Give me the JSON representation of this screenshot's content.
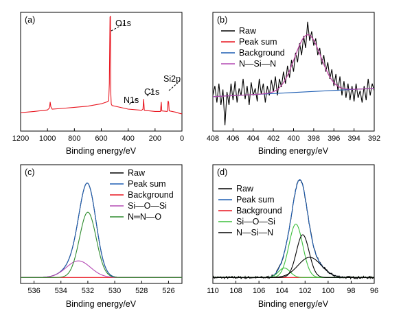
{
  "chart_data": [
    {
      "id": "a",
      "type": "line",
      "panel_label": "(a)",
      "xlabel": "Binding energy/eV",
      "ylabel": "",
      "xlim": [
        1200,
        0
      ],
      "x_reversed": true,
      "ylim": [
        0,
        1
      ],
      "xticks": [
        1200,
        1000,
        800,
        600,
        400,
        200,
        0
      ],
      "legend": [],
      "annotations": [
        {
          "text": "O1s",
          "x": 532,
          "y": 0.88
        },
        {
          "text": "N1s",
          "x": 400,
          "y": 0.25
        },
        {
          "text": "C1s",
          "x": 285,
          "y": 0.3
        },
        {
          "text": "Si2p",
          "x": 102,
          "y": 0.38
        }
      ],
      "series": [
        {
          "name": "",
          "color": "#e8141e",
          "points": [
            [
              1200,
              0.155
            ],
            [
              1100,
              0.165
            ],
            [
              1000,
              0.178
            ],
            [
              985,
              0.195
            ],
            [
              980,
              0.245
            ],
            [
              975,
              0.205
            ],
            [
              965,
              0.185
            ],
            [
              900,
              0.19
            ],
            [
              800,
              0.2
            ],
            [
              700,
              0.21
            ],
            [
              600,
              0.23
            ],
            [
              560,
              0.245
            ],
            [
              545,
              0.255
            ],
            [
              540,
              0.4
            ],
            [
              535,
              0.96
            ],
            [
              532,
              0.97
            ],
            [
              530,
              0.34
            ],
            [
              526,
              0.23
            ],
            [
              520,
              0.215
            ],
            [
              400,
              0.185
            ],
            [
              300,
              0.175
            ],
            [
              290,
              0.185
            ],
            [
              285,
              0.27
            ],
            [
              280,
              0.175
            ],
            [
              200,
              0.165
            ],
            [
              160,
              0.165
            ],
            [
              154,
              0.245
            ],
            [
              150,
              0.17
            ],
            [
              110,
              0.165
            ],
            [
              103,
              0.255
            ],
            [
              99,
              0.24
            ],
            [
              95,
              0.17
            ],
            [
              50,
              0.16
            ],
            [
              20,
              0.15
            ],
            [
              0,
              0.145
            ]
          ]
        }
      ]
    },
    {
      "id": "b",
      "type": "line",
      "panel_label": "(b)",
      "xlabel": "Binding energy/eV",
      "ylabel": "",
      "xlim": [
        408,
        392
      ],
      "x_reversed": true,
      "ylim": [
        0,
        1
      ],
      "xticks": [
        408,
        406,
        404,
        402,
        400,
        398,
        396,
        394,
        392
      ],
      "legend": [
        {
          "label": "Raw",
          "color": "#000000"
        },
        {
          "label": "Peak sum",
          "color": "#e8141e"
        },
        {
          "label": "Background",
          "color": "#1f5fb4"
        },
        {
          "label": "N—Si—N",
          "color": "#b44ab4"
        }
      ],
      "series": [
        {
          "name": "Raw",
          "color": "#000000",
          "points": [
            [
              408.0,
              0.3
            ],
            [
              407.8,
              0.38
            ],
            [
              407.6,
              0.24
            ],
            [
              407.4,
              0.4
            ],
            [
              407.2,
              0.22
            ],
            [
              407.0,
              0.35
            ],
            [
              406.8,
              0.05
            ],
            [
              406.6,
              0.33
            ],
            [
              406.4,
              0.22
            ],
            [
              406.2,
              0.4
            ],
            [
              406.0,
              0.26
            ],
            [
              405.8,
              0.42
            ],
            [
              405.6,
              0.24
            ],
            [
              405.4,
              0.36
            ],
            [
              405.2,
              0.3
            ],
            [
              405.0,
              0.44
            ],
            [
              404.8,
              0.27
            ],
            [
              404.6,
              0.38
            ],
            [
              404.4,
              0.22
            ],
            [
              404.2,
              0.41
            ],
            [
              404.0,
              0.3
            ],
            [
              403.8,
              0.36
            ],
            [
              403.6,
              0.25
            ],
            [
              403.4,
              0.44
            ],
            [
              403.2,
              0.31
            ],
            [
              403.0,
              0.4
            ],
            [
              402.8,
              0.24
            ],
            [
              402.6,
              0.38
            ],
            [
              402.4,
              0.3
            ],
            [
              402.2,
              0.43
            ],
            [
              402.0,
              0.33
            ],
            [
              401.8,
              0.46
            ],
            [
              401.6,
              0.3
            ],
            [
              401.4,
              0.44
            ],
            [
              401.2,
              0.37
            ],
            [
              401.0,
              0.5
            ],
            [
              400.8,
              0.4
            ],
            [
              400.6,
              0.55
            ],
            [
              400.4,
              0.45
            ],
            [
              400.2,
              0.6
            ],
            [
              400.0,
              0.5
            ],
            [
              399.8,
              0.66
            ],
            [
              399.6,
              0.58
            ],
            [
              399.4,
              0.74
            ],
            [
              399.2,
              0.64
            ],
            [
              399.0,
              0.8
            ],
            [
              398.8,
              0.7
            ],
            [
              398.6,
              0.92
            ],
            [
              398.4,
              0.76
            ],
            [
              398.2,
              0.84
            ],
            [
              398.0,
              0.72
            ],
            [
              397.8,
              0.78
            ],
            [
              397.6,
              0.64
            ],
            [
              397.4,
              0.7
            ],
            [
              397.2,
              0.56
            ],
            [
              397.0,
              0.64
            ],
            [
              396.8,
              0.5
            ],
            [
              396.6,
              0.58
            ],
            [
              396.4,
              0.44
            ],
            [
              396.2,
              0.52
            ],
            [
              396.0,
              0.38
            ],
            [
              395.8,
              0.48
            ],
            [
              395.6,
              0.34
            ],
            [
              395.4,
              0.46
            ],
            [
              395.2,
              0.3
            ],
            [
              395.0,
              0.42
            ],
            [
              394.8,
              0.28
            ],
            [
              394.6,
              0.4
            ],
            [
              394.4,
              0.26
            ],
            [
              394.2,
              0.38
            ],
            [
              394.0,
              0.25
            ],
            [
              393.8,
              0.4
            ],
            [
              393.6,
              0.28
            ],
            [
              393.4,
              0.34
            ],
            [
              393.2,
              0.24
            ],
            [
              393.0,
              0.38
            ],
            [
              392.8,
              0.26
            ],
            [
              392.6,
              0.44
            ],
            [
              392.4,
              0.3
            ],
            [
              392.2,
              0.4
            ],
            [
              392.0,
              0.34
            ]
          ]
        },
        {
          "name": "Peak sum",
          "color": "#e8141e",
          "gauss": {
            "center": 398.6,
            "sigma": 1.3,
            "amp": 0.48,
            "base": [
              0.29,
              0.36
            ]
          }
        },
        {
          "name": "Background",
          "color": "#1f5fb4",
          "linear": [
            [
              408,
              0.29
            ],
            [
              392,
              0.36
            ]
          ]
        },
        {
          "name": "N—Si—N",
          "color": "#b44ab4",
          "gauss": {
            "center": 398.6,
            "sigma": 1.3,
            "amp": 0.48,
            "base": [
              0.29,
              0.36
            ]
          }
        }
      ]
    },
    {
      "id": "c",
      "type": "line",
      "panel_label": "(c)",
      "xlabel": "Binding energy/eV",
      "ylabel": "",
      "xlim": [
        537,
        525
      ],
      "x_reversed": true,
      "ylim": [
        0,
        1
      ],
      "xticks": [
        536,
        534,
        532,
        530,
        528,
        526
      ],
      "legend": [
        {
          "label": "Raw",
          "color": "#000000"
        },
        {
          "label": "Peak sum",
          "color": "#1f5fb4"
        },
        {
          "label": "Background",
          "color": "#e8141e"
        },
        {
          "label": "Si—O—Si",
          "color": "#b44ab4"
        },
        {
          "label": "N═N—O",
          "color": "#2e8b2e"
        }
      ],
      "series": [
        {
          "name": "Raw",
          "color": "#000000",
          "sum": [
            {
              "center": 532.0,
              "sigma": 0.62,
              "amp": 0.69
            },
            {
              "center": 532.7,
              "sigma": 0.9,
              "amp": 0.14
            }
          ],
          "base": 0.05
        },
        {
          "name": "Peak sum",
          "color": "#1f5fb4",
          "sum": [
            {
              "center": 532.0,
              "sigma": 0.62,
              "amp": 0.69
            },
            {
              "center": 532.7,
              "sigma": 0.9,
              "amp": 0.14
            }
          ],
          "base": 0.05
        },
        {
          "name": "Background",
          "color": "#e8141e",
          "linear": [
            [
              537,
              0.05
            ],
            [
              525,
              0.05
            ]
          ]
        },
        {
          "name": "Si—O—Si",
          "color": "#b44ab4",
          "sum": [
            {
              "center": 532.7,
              "sigma": 0.9,
              "amp": 0.14
            }
          ],
          "base": 0.05
        },
        {
          "name": "N═N—O",
          "color": "#2e8b2e",
          "sum": [
            {
              "center": 532.0,
              "sigma": 0.62,
              "amp": 0.55
            }
          ],
          "base": 0.05
        }
      ]
    },
    {
      "id": "d",
      "type": "line",
      "panel_label": "(d)",
      "xlabel": "Binding energy/eV",
      "ylabel": "",
      "xlim": [
        110,
        96
      ],
      "x_reversed": true,
      "ylim": [
        0,
        1
      ],
      "xticks": [
        110,
        108,
        106,
        104,
        102,
        100,
        98,
        96
      ],
      "legend": [
        {
          "label": "Raw",
          "color": "#000000"
        },
        {
          "label": "Peak sum",
          "color": "#1f5fb4"
        },
        {
          "label": "Background",
          "color": "#e8141e"
        },
        {
          "label": "Si—O—Si",
          "color": "#3cbf3c"
        },
        {
          "label": "N—Si—N",
          "color": "#000000"
        }
      ],
      "series": [
        {
          "name": "Raw",
          "color": "#000000",
          "sum": [
            {
              "center": 102.8,
              "sigma": 0.6,
              "amp": 0.45
            },
            {
              "center": 102.2,
              "sigma": 0.55,
              "amp": 0.36
            },
            {
              "center": 103.8,
              "sigma": 0.5,
              "amp": 0.08
            },
            {
              "center": 101.6,
              "sigma": 1.0,
              "amp": 0.17
            }
          ],
          "base": 0.05,
          "noise": true
        },
        {
          "name": "Peak sum",
          "color": "#1f5fb4",
          "sum": [
            {
              "center": 102.8,
              "sigma": 0.6,
              "amp": 0.45
            },
            {
              "center": 102.2,
              "sigma": 0.55,
              "amp": 0.36
            },
            {
              "center": 103.8,
              "sigma": 0.5,
              "amp": 0.08
            },
            {
              "center": 101.6,
              "sigma": 1.0,
              "amp": 0.17
            }
          ],
          "base": 0.05
        },
        {
          "name": "Background",
          "color": "#e8141e",
          "linear": [
            [
              110,
              0.05
            ],
            [
              96,
              0.05
            ]
          ]
        },
        {
          "name": "Si—O—Si",
          "color": "#3cbf3c",
          "sum": [
            {
              "center": 102.8,
              "sigma": 0.6,
              "amp": 0.45
            }
          ],
          "base": 0.05
        },
        {
          "name": "Si—O—Si (2)",
          "color": "#3cbf3c",
          "sum": [
            {
              "center": 103.8,
              "sigma": 0.5,
              "amp": 0.08
            }
          ],
          "base": 0.05
        },
        {
          "name": "N—Si—N",
          "color": "#000000",
          "sum": [
            {
              "center": 102.2,
              "sigma": 0.55,
              "amp": 0.36
            }
          ],
          "base": 0.05
        },
        {
          "name": "N—Si—N (2)",
          "color": "#000000",
          "sum": [
            {
              "center": 101.6,
              "sigma": 1.0,
              "amp": 0.17
            }
          ],
          "base": 0.05
        }
      ]
    }
  ]
}
